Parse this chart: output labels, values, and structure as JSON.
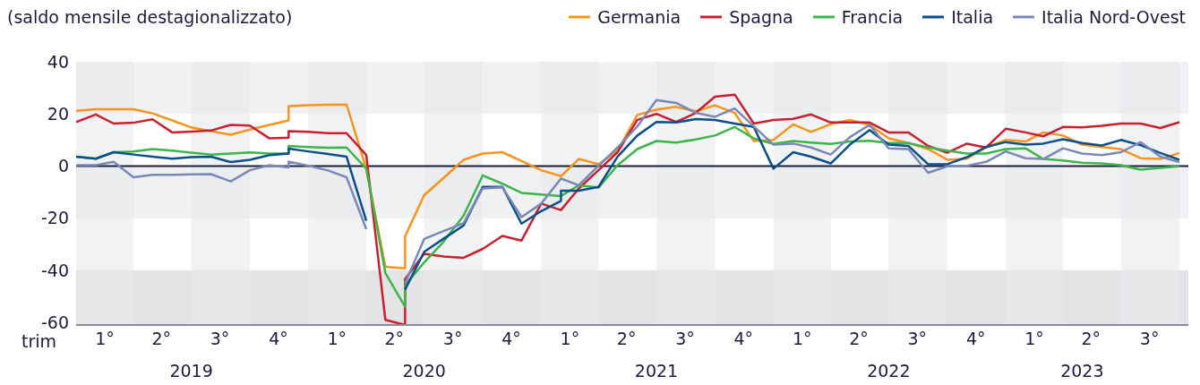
{
  "chart_data": {
    "type": "line",
    "ylabel": "(saldo mensile destagionalizzato)",
    "xlabel": "trim",
    "x": [
      "2019-01",
      "2019-02",
      "2019-03",
      "2019-04",
      "2019-05",
      "2019-06",
      "2019-07",
      "2019-08",
      "2019-09",
      "2019-10",
      "2019-11",
      "2019-12",
      "2019-12",
      "2020-01",
      "2020-02",
      "2020-03",
      "2020-04",
      "2020-05",
      "2020-06",
      "2020-06",
      "2020-07",
      "2020-08",
      "2020-09",
      "2020-10",
      "2020-11",
      "2020-12",
      "2021-01",
      "2021-02",
      "2021-02",
      "2021-03",
      "2021-04",
      "2021-05",
      "2021-06",
      "2021-07",
      "2021-08",
      "2021-09",
      "2021-10",
      "2021-11",
      "2021-12",
      "2022-01",
      "2022-02",
      "2022-03",
      "2022-04",
      "2022-05",
      "2022-06",
      "2022-07",
      "2022-08",
      "2022-09",
      "2022-10",
      "2022-11",
      "2022-12",
      "2023-01",
      "2023-02",
      "2023-03",
      "2023-04",
      "2023-05",
      "2023-06",
      "2023-07",
      "2023-08",
      "2023-09",
      "2023-10"
    ],
    "series": [
      {
        "name": "Germania",
        "color": "#f7941d",
        "values": [
          21.2,
          21.8,
          21.8,
          21.8,
          20.2,
          17.5,
          14.8,
          13.4,
          12,
          14,
          15.8,
          17.5,
          23,
          23.3,
          23.5,
          23.6,
          -1,
          -38.7,
          -39.3,
          -27,
          -11.2,
          -4.5,
          2.4,
          4.8,
          5.3,
          1.9,
          -1.6,
          -3.9,
          -3.9,
          2.7,
          0.7,
          5.9,
          19.6,
          21.6,
          22.7,
          21,
          23.3,
          20.4,
          9.6,
          10,
          16,
          13.1,
          16.1,
          17.7,
          15.8,
          10.6,
          8.8,
          6.5,
          2.4,
          2.8,
          7.1,
          10,
          9.4,
          12.9,
          11.7,
          8.2,
          7.3,
          6.5,
          3,
          2.7,
          5
        ]
      },
      {
        "name": "Spagna",
        "color": "#c8202f",
        "values": [
          16.9,
          19.8,
          16.3,
          16.6,
          17.9,
          12.9,
          13.2,
          13.6,
          15.8,
          15.5,
          10.6,
          10.9,
          13.4,
          13.1,
          12.6,
          12.6,
          4.2,
          -59,
          -61,
          -43.4,
          -33.7,
          -34.7,
          -35.2,
          -31.8,
          -26.8,
          -28.6,
          -14.4,
          -16.9,
          -16.9,
          -8.6,
          -1.6,
          5.3,
          17.7,
          20,
          16.9,
          20.4,
          26.6,
          27.4,
          16.3,
          17.7,
          18.1,
          19.8,
          16.7,
          16.7,
          16.7,
          12.9,
          12.9,
          7.7,
          5.1,
          8.6,
          7.1,
          14.3,
          12.9,
          11.4,
          15,
          14.8,
          15.4,
          16.3,
          16.3,
          14.6,
          16.8
        ]
      },
      {
        "name": "Francia",
        "color": "#3db54a",
        "values": [
          3.6,
          2.8,
          5.3,
          5.6,
          6.5,
          5.9,
          5.1,
          4.4,
          4.8,
          5.2,
          4.8,
          4.8,
          7.7,
          7.3,
          7,
          7.1,
          -1,
          -41,
          -54,
          -45.7,
          -37,
          -28.9,
          -19,
          -3.6,
          -6.8,
          -10.3,
          -10.9,
          -11.5,
          -11.5,
          -7.4,
          -8.3,
          0.3,
          6.5,
          9.6,
          9,
          10.2,
          11.7,
          15,
          10.6,
          8.5,
          9.6,
          9,
          8.5,
          9.4,
          9.7,
          8.8,
          8.8,
          7.1,
          5.9,
          4.8,
          4.8,
          6.5,
          6.8,
          2.7,
          2.1,
          1.3,
          1,
          0.3,
          -1.4,
          -0.7,
          -0.1
        ]
      },
      {
        "name": "Italia",
        "color": "#0b4f8a",
        "values": [
          3.6,
          2.8,
          5.3,
          4.4,
          3.6,
          2.8,
          3.4,
          3.6,
          1.5,
          2.4,
          4.2,
          4.8,
          6.7,
          5.6,
          4.6,
          3.6,
          -21,
          null,
          -47.4,
          -47.4,
          -32.9,
          -27.8,
          -22.8,
          -8,
          -8,
          -22.1,
          -17.3,
          -13.4,
          -9.5,
          -9.5,
          -8,
          3.6,
          11.7,
          16.9,
          16.7,
          18,
          17.7,
          16.3,
          15,
          -1,
          5.3,
          3.6,
          1,
          8.2,
          13.8,
          8.2,
          7.7,
          0.7,
          0.7,
          3.4,
          7.3,
          9.2,
          8.2,
          8.6,
          10.3,
          8.8,
          7.9,
          10,
          8,
          5,
          2.4
        ]
      },
      {
        "name": "Italia Nord-Ovest",
        "color": "#7a88b8",
        "values": [
          0.3,
          0.3,
          1.6,
          -4.3,
          -3.4,
          -3.4,
          -3.2,
          -3.1,
          -5.9,
          -1.6,
          0.3,
          -0.5,
          1.7,
          0.1,
          -1.7,
          -4.3,
          -24.2,
          null,
          -45,
          -45,
          -28,
          -24.9,
          -21.9,
          -8.6,
          -8.2,
          -19.6,
          -14.4,
          -4.8,
          -4.8,
          -7.4,
          0.1,
          7.1,
          15.2,
          25.3,
          24.2,
          20.4,
          18.9,
          22.1,
          15.2,
          8.2,
          8.6,
          7.1,
          4.4,
          11.1,
          15.8,
          6.8,
          6.5,
          -2.6,
          -0.1,
          0.1,
          1.6,
          5.6,
          3,
          2.7,
          6.8,
          4.8,
          4.2,
          5.3,
          9.2,
          3.6,
          1.5
        ]
      }
    ],
    "xlim": [
      "2019-01",
      "2023-10-15"
    ],
    "xticks": [
      {
        "value": "2019-02-15",
        "label": "1°"
      },
      {
        "value": "2019-05-15",
        "label": "2°"
      },
      {
        "value": "2019-08-15",
        "label": "3°"
      },
      {
        "value": "2019-11-15",
        "label": "4°"
      },
      {
        "value": "2020-02-15",
        "label": "1°"
      },
      {
        "value": "2020-05-15",
        "label": "2°"
      },
      {
        "value": "2020-08-15",
        "label": "3°"
      },
      {
        "value": "2020-11-15",
        "label": "4°"
      },
      {
        "value": "2021-02-15",
        "label": "1°"
      },
      {
        "value": "2021-05-15",
        "label": "2°"
      },
      {
        "value": "2021-08-15",
        "label": "3°"
      },
      {
        "value": "2021-11-15",
        "label": "4°"
      },
      {
        "value": "2022-02-15",
        "label": "1°"
      },
      {
        "value": "2022-05-15",
        "label": "2°"
      },
      {
        "value": "2022-08-15",
        "label": "3°"
      },
      {
        "value": "2022-11-15",
        "label": "4°"
      },
      {
        "value": "2023-02-15",
        "label": "1°"
      },
      {
        "value": "2023-05-15",
        "label": "2°"
      },
      {
        "value": "2023-08-15",
        "label": "3°"
      }
    ],
    "x2lim": [
      "2019-01",
      "2023-10-15"
    ],
    "x2ticks": [
      {
        "value": "2019-07",
        "label": "2019"
      },
      {
        "value": "2020-07",
        "label": "2020"
      },
      {
        "value": "2021-07",
        "label": "2021"
      },
      {
        "value": "2022-07",
        "label": "2022"
      },
      {
        "value": "2023-05",
        "label": "2023"
      }
    ],
    "ylim": [
      -61,
      40
    ],
    "yticks": [
      -60,
      -40,
      -20,
      0,
      20,
      40
    ],
    "ref_lines": [
      {
        "axis": "y",
        "value": 0,
        "color": "#1a1a3a"
      }
    ],
    "bands": [
      {
        "axis": "y",
        "from": 20,
        "to": 40,
        "color": "#f0f1f3"
      },
      {
        "axis": "y",
        "from": -20,
        "to": 0,
        "color": "#f0f1f3"
      },
      {
        "axis": "y",
        "from": -61,
        "to": -40,
        "color": "#e3e4e6"
      },
      {
        "axis": "x",
        "from": "2019-01",
        "to": "2019-04",
        "color": "#e6e7ea"
      },
      {
        "axis": "x",
        "from": "2019-07",
        "to": "2019-10",
        "color": "#e6e7ea"
      },
      {
        "axis": "x",
        "from": "2020-01",
        "to": "2020-04",
        "color": "#e6e7ea"
      },
      {
        "axis": "x",
        "from": "2020-07",
        "to": "2020-10",
        "color": "#e6e7ea"
      },
      {
        "axis": "x",
        "from": "2021-01",
        "to": "2021-04",
        "color": "#e6e7ea"
      },
      {
        "axis": "x",
        "from": "2021-07",
        "to": "2021-10",
        "color": "#e6e7ea"
      },
      {
        "axis": "x",
        "from": "2022-01",
        "to": "2022-04",
        "color": "#e6e7ea"
      },
      {
        "axis": "x",
        "from": "2022-07",
        "to": "2022-10",
        "color": "#e6e7ea"
      },
      {
        "axis": "x",
        "from": "2023-01",
        "to": "2023-04",
        "color": "#e6e7ea"
      },
      {
        "axis": "x",
        "from": "2023-07",
        "to": "2023-10",
        "color": "#e6e7ea"
      }
    ],
    "grid": false,
    "legend": "top right",
    "marker": "none",
    "line_style": "solid"
  }
}
